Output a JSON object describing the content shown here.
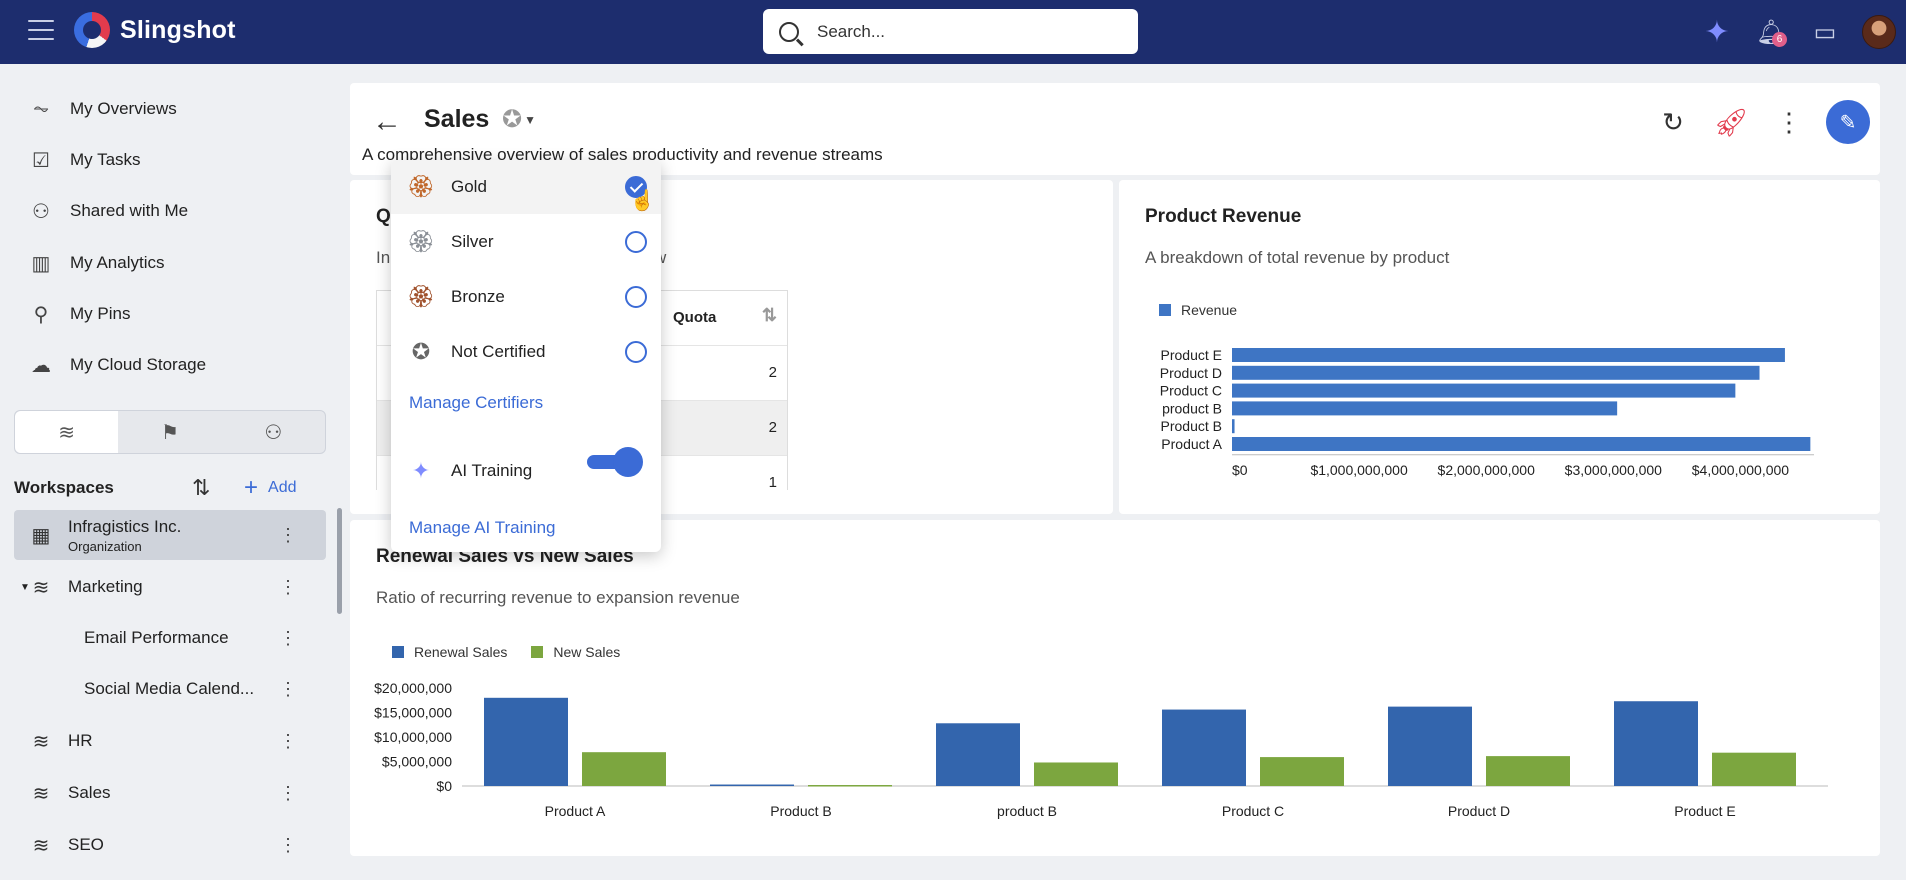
{
  "app": {
    "name": "Slingshot",
    "search_placeholder": "Search...",
    "notification_count": "6"
  },
  "sidebar": {
    "nav": [
      {
        "label": "My Overviews",
        "icon": "activity-icon"
      },
      {
        "label": "My Tasks",
        "icon": "clipboard-check-icon"
      },
      {
        "label": "Shared with Me",
        "icon": "shared-users-icon"
      },
      {
        "label": "My Analytics",
        "icon": "bar-chart-icon"
      },
      {
        "label": "My Pins",
        "icon": "pin-icon"
      },
      {
        "label": "My Cloud Storage",
        "icon": "cloud-icon"
      }
    ],
    "workspaces_title": "Workspaces",
    "add_label": "Add",
    "workspaces": [
      {
        "label": "Infragistics Inc.",
        "sublabel": "Organization",
        "icon": "building-icon"
      },
      {
        "label": "Marketing",
        "icon": "layers-icon"
      },
      {
        "label": "Email Performance",
        "icon": ""
      },
      {
        "label": "Social Media Calend...",
        "icon": ""
      },
      {
        "label": "HR",
        "icon": "layers-icon"
      },
      {
        "label": "Sales",
        "icon": "layers-icon"
      },
      {
        "label": "SEO",
        "icon": "layers-icon"
      }
    ]
  },
  "dashboard": {
    "title": "Sales",
    "description": "A comprehensive overview of sales productivity and revenue streams"
  },
  "certification_menu": {
    "options": [
      {
        "label": "Gold",
        "checked": true,
        "color": "#c0672a"
      },
      {
        "label": "Silver",
        "checked": false,
        "color": "#8a8f96"
      },
      {
        "label": "Bronze",
        "checked": false,
        "color": "#a0522d"
      },
      {
        "label": "Not Certified",
        "checked": false,
        "color": "#666666"
      }
    ],
    "manage_certifiers": "Manage Certifiers",
    "ai_training_label": "AI Training",
    "ai_training_enabled": true,
    "manage_ai_training": "Manage AI Training"
  },
  "quota_card": {
    "title_visible": "Q",
    "sub_left": "In",
    "sub_right": "w",
    "column_header": "Quota",
    "values": [
      "2",
      "2",
      "1"
    ]
  },
  "chart_data": [
    {
      "type": "bar",
      "orientation": "horizontal",
      "title": "Product Revenue",
      "subtitle": "A breakdown of total revenue by product",
      "categories": [
        "Product E",
        "Product D",
        "Product C",
        "product B",
        "Product B",
        "Product A"
      ],
      "series": [
        {
          "name": "Revenue",
          "color": "#3e75c4",
          "values": [
            4350000000,
            4150000000,
            3960000000,
            3030000000,
            20000000,
            4550000000
          ]
        }
      ],
      "xlim": [
        0,
        4500000000
      ],
      "xticks": [
        "$0",
        "$1,000,000,000",
        "$2,000,000,000",
        "$3,000,000,000",
        "$4,000,000,000"
      ],
      "legend": "top-left"
    },
    {
      "type": "bar",
      "title": "Renewal Sales vs New Sales",
      "subtitle": "Ratio of recurring revenue to expansion revenue",
      "categories": [
        "Product A",
        "Product B",
        "product B",
        "Product C",
        "Product D",
        "Product E"
      ],
      "series": [
        {
          "name": "Renewal Sales",
          "color": "#3365ad",
          "values": [
            18000000,
            300000,
            12800000,
            15600000,
            16200000,
            17300000
          ]
        },
        {
          "name": "New Sales",
          "color": "#7ca63f",
          "values": [
            6900000,
            200000,
            4800000,
            5900000,
            6100000,
            6800000
          ]
        }
      ],
      "ylim": [
        0,
        20000000
      ],
      "yticks": [
        "$0",
        "$5,000,000",
        "$10,000,000",
        "$15,000,000",
        "$20,000,000"
      ],
      "legend": "top-left"
    }
  ]
}
